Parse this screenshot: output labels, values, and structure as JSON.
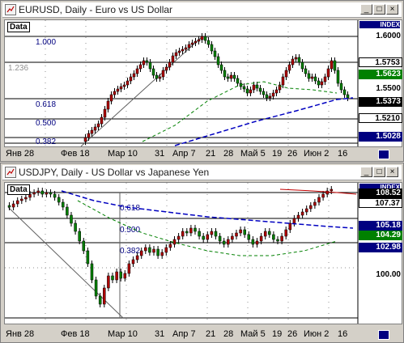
{
  "windows": [
    {
      "title": "EURUSD, Daily - Euro vs US Dollar",
      "data_label": "Data",
      "index_label": "INDEX",
      "price_axis": [
        "1.6000",
        "1.5500"
      ],
      "price_boxes": [
        {
          "label": "1.5753",
          "bg": "#ffffff",
          "fg": "#000000"
        },
        {
          "label": "1.5623",
          "bg": "#008000",
          "fg": "#ffffff"
        },
        {
          "label": "1.5373",
          "bg": "#000000",
          "fg": "#ffffff"
        },
        {
          "label": "1.5210",
          "bg": "#ffffff",
          "fg": "#000000"
        },
        {
          "label": "1.5028",
          "bg": "#000080",
          "fg": "#ffffff"
        }
      ],
      "fib_levels": [
        "1.000",
        "1.236",
        "0.618",
        "0.500",
        "0.382",
        "1.000"
      ],
      "x_labels": [
        "Янв 28",
        "Фев 18",
        "Мар 10",
        "31",
        "Апр 7",
        "21",
        "28",
        "Май 5",
        "19",
        "26",
        "Июн 2",
        "16"
      ]
    },
    {
      "title": "USDJPY, Daily - US Dollar vs Japanese Yen",
      "data_label": "Data",
      "index_label": "INDEX",
      "price_axis": [
        "100.00"
      ],
      "price_boxes": [
        {
          "label": "108.52",
          "bg": "#000000",
          "fg": "#ffffff"
        },
        {
          "label": "107.37",
          "bg": "#ffffff",
          "fg": "#000000"
        },
        {
          "label": "105.18",
          "bg": "#000080",
          "fg": "#ffffff"
        },
        {
          "label": "104.29",
          "bg": "#008000",
          "fg": "#ffffff"
        },
        {
          "label": "102.98",
          "bg": "#000080",
          "fg": "#ffffff"
        }
      ],
      "fib_levels": [
        "0.618",
        "0.500",
        "0.382"
      ],
      "x_labels": [
        "Янв 28",
        "Фев 18",
        "Мар 10",
        "31",
        "Апр 7",
        "21",
        "28",
        "Май 5",
        "19",
        "26",
        "Июн 2",
        "16"
      ]
    }
  ],
  "window_buttons": {
    "minimize": "_",
    "maximize": "□",
    "close": "×"
  },
  "colors": {
    "bull": "#008000",
    "bear": "#b00000",
    "ma_green": "#008000",
    "ma_blue": "#0000c0",
    "ma_red": "#c00000"
  }
}
